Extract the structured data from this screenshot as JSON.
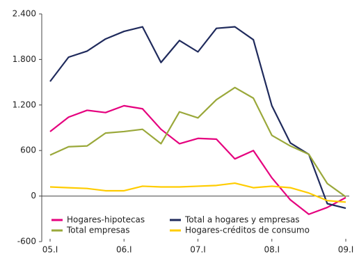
{
  "chart_data": {
    "type": "line",
    "categories": [
      "05.I",
      null,
      null,
      null,
      "06.I",
      null,
      null,
      null,
      "07.I",
      null,
      null,
      null,
      "08.I",
      null,
      null,
      null,
      "09.I"
    ],
    "series": [
      {
        "name": "Hogares-hipotecas",
        "color": "#e5007e",
        "values": [
          850,
          1040,
          1130,
          1100,
          1190,
          1150,
          880,
          690,
          760,
          750,
          490,
          600,
          240,
          -50,
          -240,
          -150,
          -20
        ]
      },
      {
        "name": "Total a hogares y empresas",
        "color": "#1f2a5c",
        "values": [
          1510,
          1830,
          1910,
          2070,
          2170,
          2230,
          1760,
          2050,
          1900,
          2210,
          2230,
          2060,
          1190,
          700,
          550,
          -100,
          -160
        ]
      },
      {
        "name": "Total empresas",
        "color": "#9aa83a",
        "values": [
          540,
          650,
          660,
          830,
          850,
          880,
          690,
          1110,
          1030,
          1270,
          1430,
          1290,
          800,
          660,
          550,
          165,
          -10
        ]
      },
      {
        "name": "Hogares-créditos de consumo",
        "color": "#ffcc00",
        "values": [
          120,
          110,
          100,
          70,
          70,
          130,
          120,
          120,
          130,
          140,
          170,
          110,
          130,
          110,
          40,
          -60,
          -80
        ]
      }
    ],
    "ylim": [
      -600,
      2400
    ],
    "yticks": [
      {
        "value": -600,
        "label": "-600"
      },
      0,
      600,
      {
        "value": 1200,
        "label": "1.200"
      },
      {
        "value": 1800,
        "label": "1.800"
      },
      {
        "value": 2400,
        "label": "2.400"
      }
    ],
    "grid": false
  }
}
